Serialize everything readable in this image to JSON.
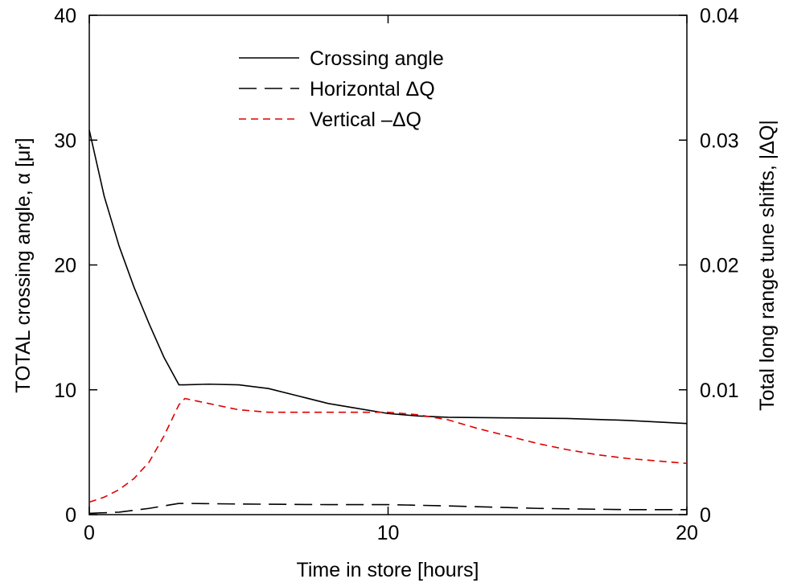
{
  "chart_data": {
    "type": "line",
    "xlabel": "Time in store [hours]",
    "ylabel_left": "TOTAL crossing angle, α [μr]",
    "ylabel_right": "Total long range tune shifts, |ΔQ|",
    "xlim": [
      0,
      20
    ],
    "ylim_left": [
      0,
      40
    ],
    "ylim_right": [
      0,
      0.04
    ],
    "x_ticks": [
      "0",
      "10",
      "20"
    ],
    "y_ticks_left": [
      "0",
      "10",
      "20",
      "30",
      "40"
    ],
    "y_ticks_right": [
      "0",
      "0.01",
      "0.02",
      "0.03",
      "0.04"
    ],
    "grid": false,
    "legend_position": "top-center",
    "series": [
      {
        "name": "Crossing angle",
        "axis": "left",
        "color": "#000000",
        "dash": "solid",
        "x": [
          0,
          0.5,
          1,
          1.5,
          2,
          2.5,
          3,
          3.2,
          4,
          5,
          6,
          7,
          8,
          9,
          10,
          11,
          12,
          14,
          16,
          18,
          20
        ],
        "y": [
          30.8,
          25.5,
          21.5,
          18.2,
          15.3,
          12.6,
          10.4,
          10.4,
          10.45,
          10.4,
          10.1,
          9.5,
          8.9,
          8.5,
          8.1,
          7.9,
          7.8,
          7.75,
          7.7,
          7.55,
          7.3
        ]
      },
      {
        "name": "Horizontal ΔQ",
        "axis": "right",
        "color": "#000000",
        "dash": "long-dash",
        "x": [
          0,
          1,
          2,
          3,
          3.2,
          5,
          8,
          10,
          12,
          15,
          18,
          20
        ],
        "y": [
          0.0001,
          0.0002,
          0.0005,
          0.0009,
          0.0009,
          0.00085,
          0.0008,
          0.0008,
          0.0007,
          0.0005,
          0.0004,
          0.0004
        ]
      },
      {
        "name": "Vertical –ΔQ",
        "axis": "right",
        "color": "#e00000",
        "dash": "short-dash",
        "x": [
          0,
          0.5,
          1,
          1.5,
          2,
          2.5,
          3,
          3.2,
          4,
          5,
          6,
          7,
          8,
          9,
          10,
          11,
          12,
          13,
          14,
          15,
          16,
          17,
          18,
          19,
          20
        ],
        "y": [
          0.001,
          0.0014,
          0.002,
          0.0029,
          0.0042,
          0.0063,
          0.0088,
          0.0093,
          0.0089,
          0.0084,
          0.0082,
          0.0082,
          0.0082,
          0.0082,
          0.0082,
          0.008,
          0.0076,
          0.0069,
          0.0063,
          0.0057,
          0.0052,
          0.0048,
          0.0045,
          0.0043,
          0.0041
        ]
      }
    ]
  }
}
